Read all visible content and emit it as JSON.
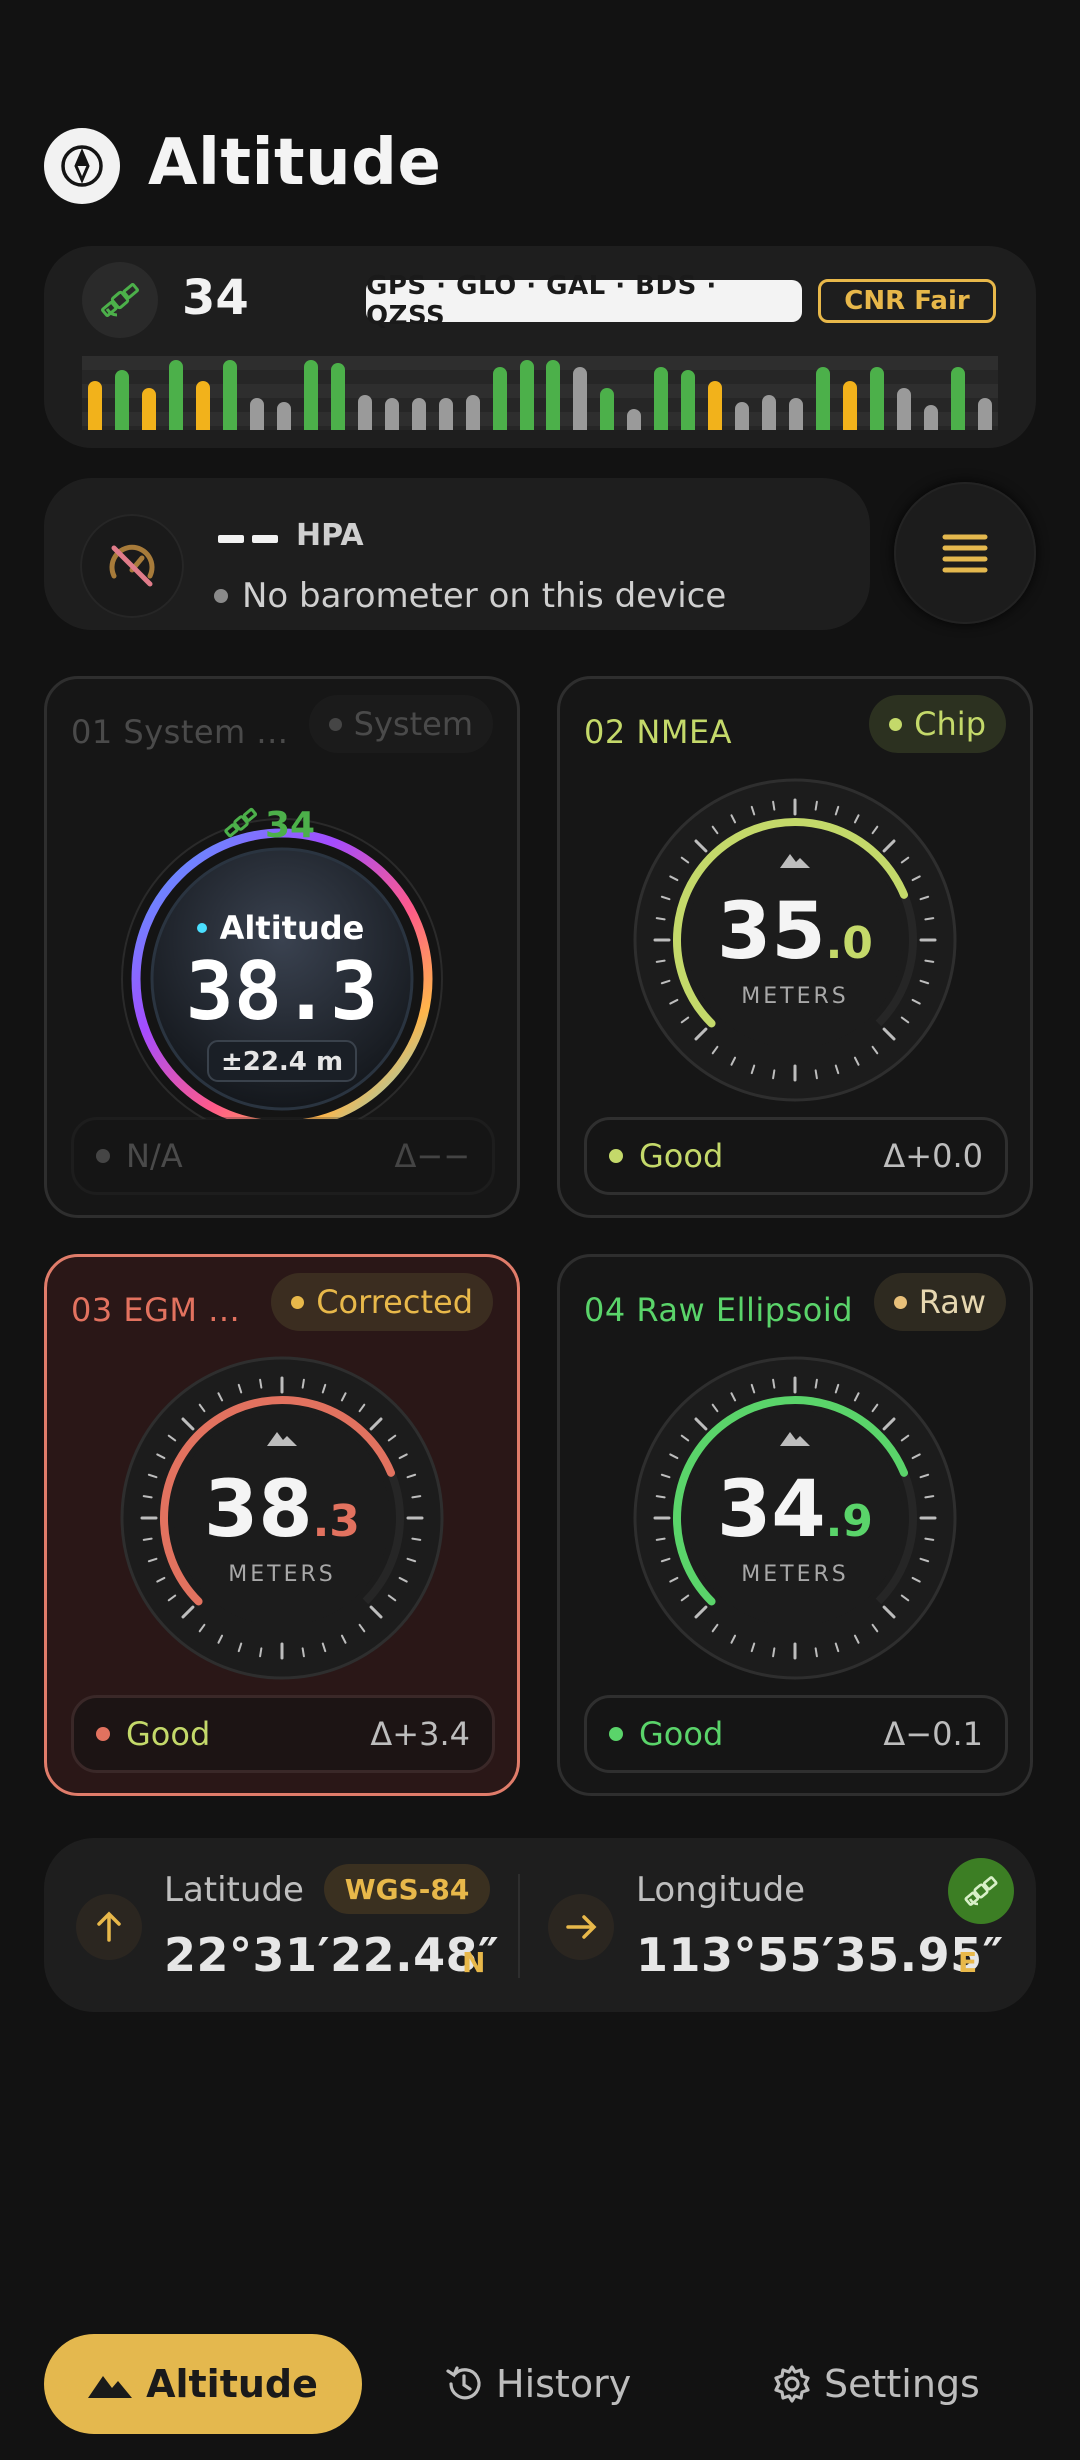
{
  "header": {
    "title": "Altitude"
  },
  "satellites": {
    "count": "34",
    "constellations": "GPS · GLO · GAL · BDS · QZSS",
    "cnr": "CNR Fair",
    "signal_levels": [
      0.7,
      0.85,
      0.6,
      1.0,
      0.7,
      1.0,
      0.45,
      0.4,
      1.0,
      0.95,
      0.5,
      0.45,
      0.45,
      0.45,
      0.5,
      0.9,
      1.05,
      1.05,
      0.9,
      0.6,
      0.3,
      0.9,
      0.85,
      0.7,
      0.4,
      0.5,
      0.45,
      0.9,
      0.7,
      0.9,
      0.6,
      0.35,
      0.9,
      0.45
    ],
    "signal_colors": [
      "#f2b21b",
      "#4cb04a",
      "#f2b21b",
      "#4cb04a",
      "#f2b21b",
      "#4cb04a",
      "#9a9a9a",
      "#9a9a9a",
      "#4cb04a",
      "#4cb04a",
      "#9a9a9a",
      "#9a9a9a",
      "#9a9a9a",
      "#9a9a9a",
      "#9a9a9a",
      "#4cb04a",
      "#4cb04a",
      "#4cb04a",
      "#9a9a9a",
      "#4cb04a",
      "#9a9a9a",
      "#4cb04a",
      "#4cb04a",
      "#f2b21b",
      "#9a9a9a",
      "#9a9a9a",
      "#9a9a9a",
      "#4cb04a",
      "#f2b21b",
      "#4cb04a",
      "#9a9a9a",
      "#9a9a9a",
      "#4cb04a",
      "#9a9a9a"
    ]
  },
  "barometer": {
    "value": "",
    "unit": "HPA",
    "status": "No barometer on this device"
  },
  "cards": [
    {
      "title": "01 System ...",
      "badge": "System",
      "sat_count": "34",
      "gauge_label": "Altitude",
      "value": "38.3",
      "accuracy": "±22.4 m",
      "quality": "N/A",
      "delta": "Δ−−",
      "color": "#aaaaaa",
      "icon": "satellite-icon"
    },
    {
      "title": "02 NMEA",
      "badge": "Chip",
      "value_int": "35",
      "value_dec": ".0",
      "unit": "METERS",
      "quality": "Good",
      "delta": "Δ+0.0",
      "color": "#c4d96a",
      "arc_fraction": 0.75,
      "icon": "mountain-icon"
    },
    {
      "title": "03 EGM ...",
      "badge": "Corrected",
      "value_int": "38",
      "value_dec": ".3",
      "unit": "METERS",
      "quality": "Good",
      "delta": "Δ+3.4",
      "color": "#e2725f",
      "arc_fraction": 0.75,
      "icon": "mountain-icon"
    },
    {
      "title": "04 Raw Ellipsoid",
      "badge": "Raw",
      "value_int": "34",
      "value_dec": ".9",
      "unit": "METERS",
      "quality": "Good",
      "delta": "Δ−0.1",
      "color": "#5ad46a",
      "arc_fraction": 0.75,
      "icon": "mountain-icon"
    }
  ],
  "coords": {
    "lat_label": "Latitude",
    "datum": "WGS-84",
    "lat_value": "22°31′22.48″",
    "lat_hemi": "N",
    "lon_label": "Longitude",
    "lon_value": "113°55′35.95″",
    "lon_hemi": "E"
  },
  "nav": {
    "altitude": "Altitude",
    "history": "History",
    "settings": "Settings"
  },
  "colors": {
    "accent": "#e4b84e",
    "good": "#5ad46a",
    "bad": "#e2725f"
  }
}
